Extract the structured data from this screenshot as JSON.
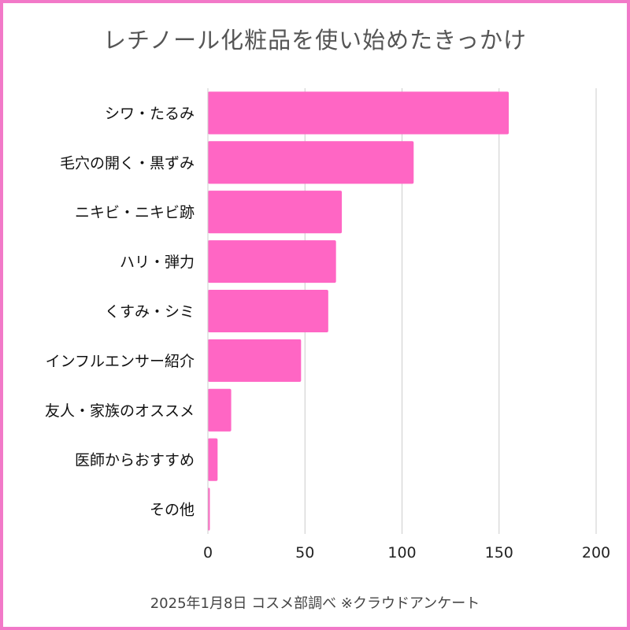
{
  "chart_data": {
    "type": "bar",
    "orientation": "horizontal",
    "title": "レチノール化粧品を使い始めたきっかけ",
    "categories": [
      "シワ・たるみ",
      "毛穴の開く・黒ずみ",
      "ニキビ・ニキビ跡",
      "ハリ・弾力",
      "くすみ・シミ",
      "インフルエンサー紹介",
      "友人・家族のオススメ",
      "医師からおすすめ",
      "その他"
    ],
    "values": [
      155,
      106,
      69,
      66,
      62,
      48,
      12,
      5,
      1
    ],
    "x_ticks": [
      "0",
      "50",
      "100",
      "150",
      "200"
    ],
    "xlim": [
      0,
      200
    ],
    "xlabel": "",
    "ylabel": "",
    "grid": true,
    "legend": "none",
    "bar_color": "#ff66c4",
    "border_color": "#f279c8",
    "source": "2025年1月8日 コスメ部調べ ※クラウドアンケート"
  }
}
